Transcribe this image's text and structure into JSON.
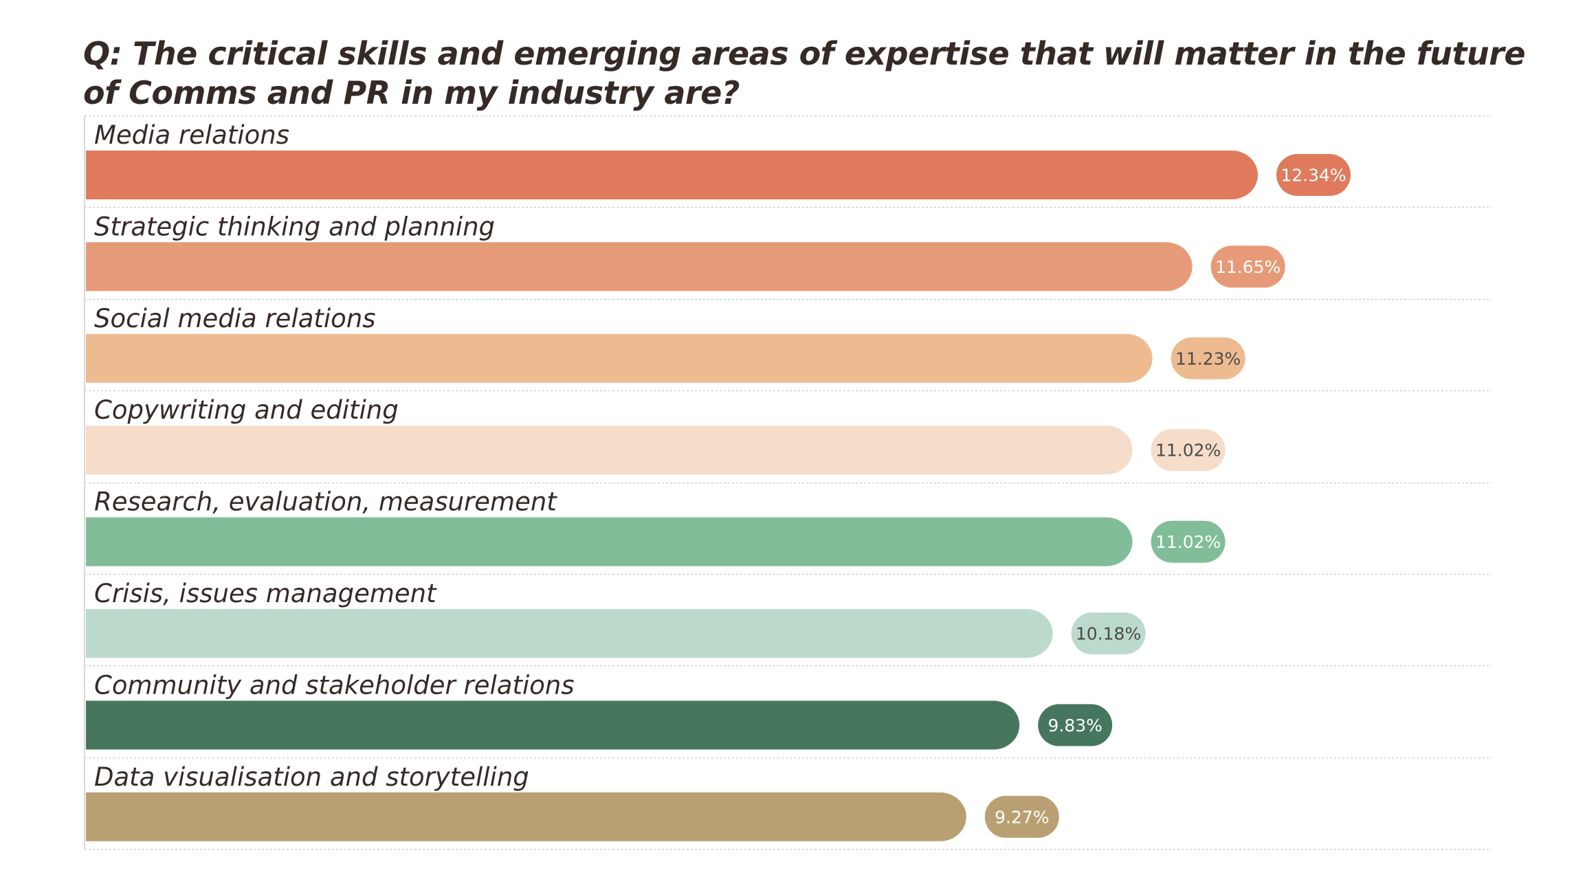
{
  "chart_data": {
    "type": "bar",
    "orientation": "horizontal",
    "title": "Q: The critical skills and emerging areas of expertise that will matter in the future of Comms and PR in my industry are?",
    "xlabel": "",
    "ylabel": "",
    "xlim": [
      0,
      12.34
    ],
    "grid": "dotted row separators",
    "legend": "none",
    "value_suffix": "%",
    "categories": [
      "Media relations",
      "Strategic thinking and planning",
      "Social media relations",
      "Copywriting and editing",
      "Research, evaluation, measurement",
      "Crisis, issues management",
      "Community and stakeholder relations",
      "Data visualisation and storytelling"
    ],
    "values": [
      12.34,
      11.65,
      11.23,
      11.02,
      11.02,
      10.18,
      9.83,
      9.27
    ],
    "value_labels": [
      "12.34%",
      "11.65%",
      "11.23%",
      "11.02%",
      "11.02%",
      "10.18%",
      "9.83%",
      "9.27%"
    ],
    "colors": [
      "#df7b5c",
      "#e79a77",
      "#eebb91",
      "#f5ddca",
      "#80bd98",
      "#bcdacb",
      "#46775e",
      "#b8a072"
    ],
    "label_text_colors": [
      "#ffffff",
      "#ffffff",
      "#4a4a4a",
      "#4a4a4a",
      "#ffffff",
      "#4a4a4a",
      "#ffffff",
      "#ffffff"
    ]
  },
  "colors": {
    "title_text": "#352a26",
    "grid_line": "#d0d0d0",
    "axis_line": "#d8d8d8"
  }
}
